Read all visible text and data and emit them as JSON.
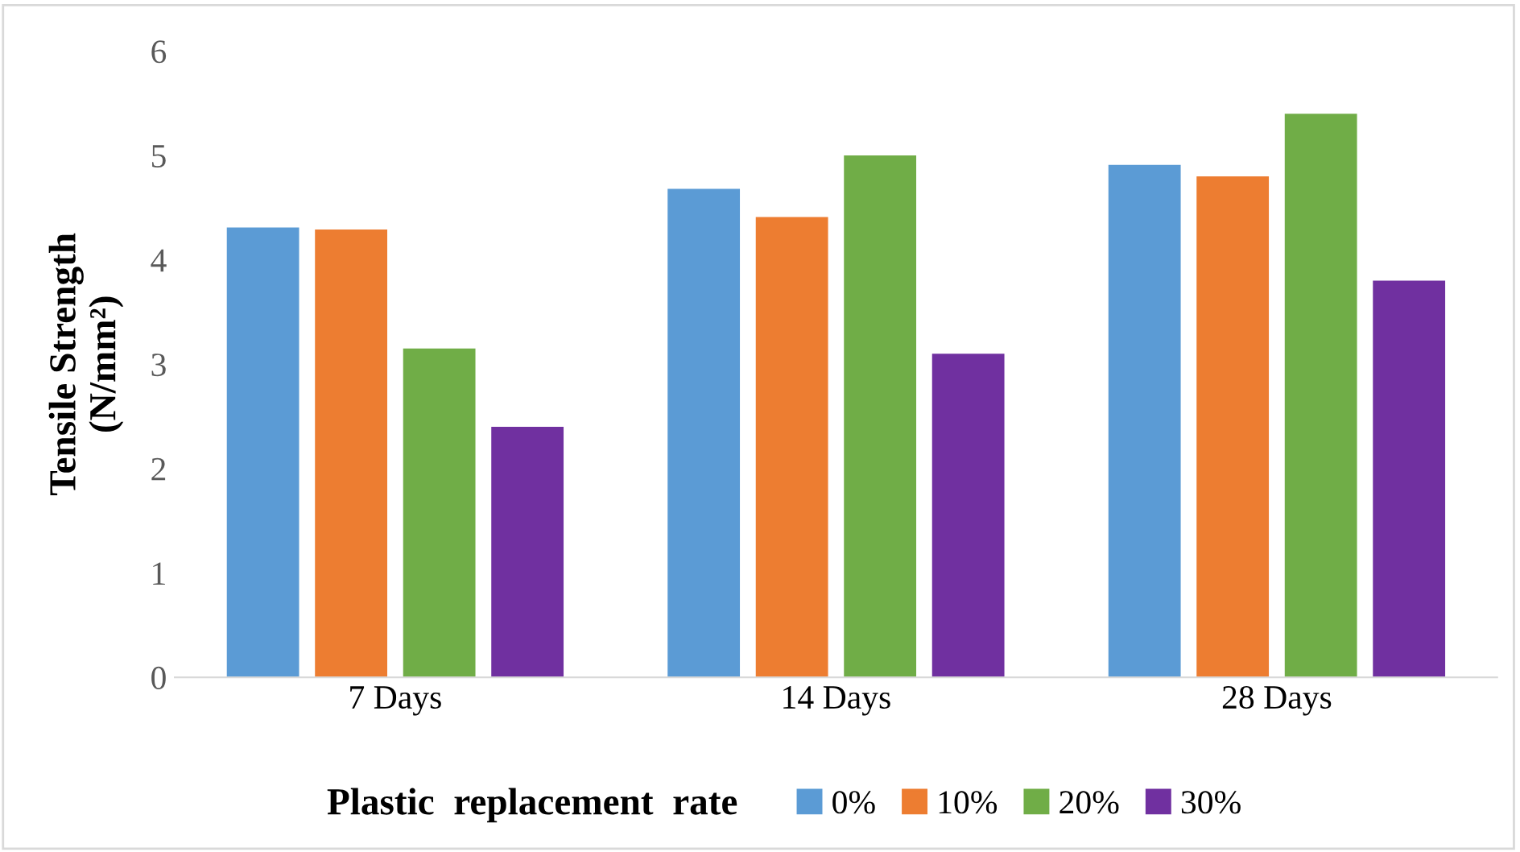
{
  "chart_data": {
    "type": "bar",
    "ylabel": "Tensile Strength\n(N/mm²)",
    "legend_title": "Plastic  replacement  rate",
    "categories": [
      "7 Days",
      "14 Days",
      "28 Days"
    ],
    "series": [
      {
        "name": "0%",
        "color": "#5b9bd5",
        "values": [
          4.31,
          4.68,
          4.91
        ]
      },
      {
        "name": "10%",
        "color": "#ed7d31",
        "values": [
          4.29,
          4.41,
          4.8
        ]
      },
      {
        "name": "20%",
        "color": "#70ad47",
        "values": [
          3.15,
          5.0,
          5.4
        ]
      },
      {
        "name": "30%",
        "color": "#7030a0",
        "values": [
          2.4,
          3.1,
          3.8
        ]
      }
    ],
    "ylim": [
      0,
      6
    ],
    "yticks": [
      0,
      1,
      2,
      3,
      4,
      5,
      6
    ],
    "grid": false,
    "legend": "bottom"
  }
}
